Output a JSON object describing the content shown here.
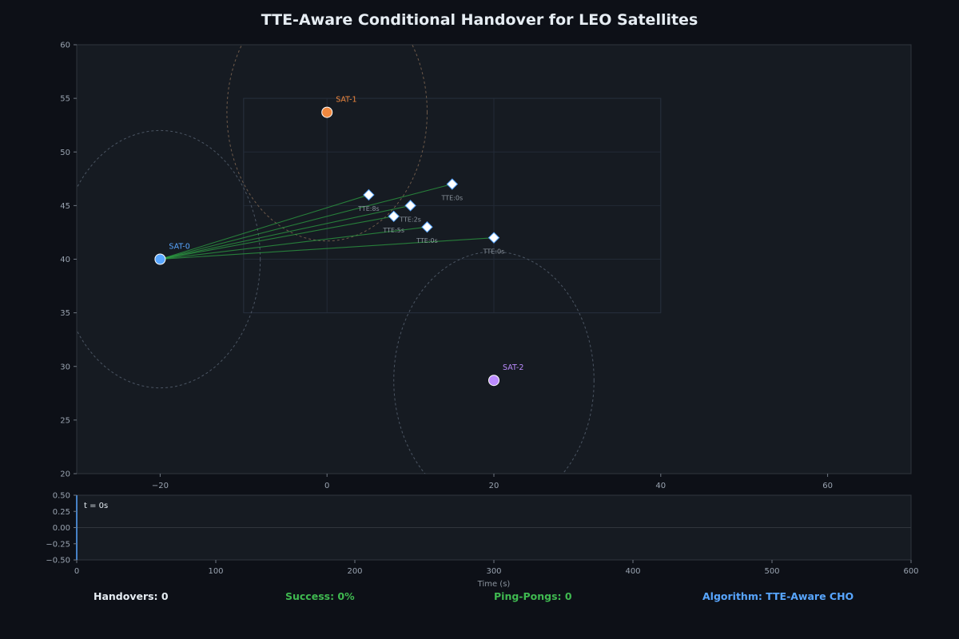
{
  "title": "TTE-Aware Conditional Handover for LEO Satellites",
  "colors": {
    "background": "#0d1017",
    "panel": "#161b22",
    "frame": "#30363d",
    "link": "#2ea043",
    "ue_fill": "#ffffff",
    "ue_edge": "#58a6ff",
    "text_white": "#e6edf3",
    "success_green": "#3fb950",
    "algorithm_blue": "#58a6ff"
  },
  "chart_data": [
    {
      "type": "scatter",
      "title": "TTE-Aware Conditional Handover for LEO Satellites",
      "xlim": [
        -30,
        70
      ],
      "ylim": [
        20,
        60
      ],
      "xticks": [
        -20,
        0,
        20,
        40,
        60
      ],
      "yticks": [
        20,
        25,
        30,
        35,
        40,
        45,
        50,
        55,
        60
      ],
      "grid": false,
      "satellites": [
        {
          "name": "SAT-0",
          "x": -20,
          "y": 40,
          "color": "#58a6ff",
          "coverage_rx": 12,
          "coverage_ry": 12
        },
        {
          "name": "SAT-1",
          "x": 0,
          "y": 53.7,
          "color": "#f0883e",
          "coverage_rx": 12,
          "coverage_ry": 12
        },
        {
          "name": "SAT-2",
          "x": 20,
          "y": 28.7,
          "color": "#bc8cff",
          "coverage_rx": 12,
          "coverage_ry": 12
        }
      ],
      "area_bounds": {
        "x": [
          -10,
          40
        ],
        "y": [
          35,
          55
        ],
        "grid_x": [
          -10,
          0,
          20,
          40
        ],
        "grid_y": [
          35,
          40,
          45,
          50,
          55
        ]
      },
      "ues": [
        {
          "x": 5,
          "y": 46,
          "label": "TTE:8s",
          "serving": "SAT-0"
        },
        {
          "x": 10,
          "y": 45,
          "label": "TTE:2s",
          "serving": "SAT-0"
        },
        {
          "x": 8,
          "y": 44,
          "label": "TTE:5s",
          "serving": "SAT-0"
        },
        {
          "x": 15,
          "y": 47,
          "label": "TTE:0s",
          "serving": "SAT-0"
        },
        {
          "x": 12,
          "y": 43,
          "label": "TTE:0s",
          "serving": "SAT-0"
        },
        {
          "x": 20,
          "y": 42,
          "label": "TTE:0s",
          "serving": "SAT-0"
        }
      ]
    },
    {
      "type": "line",
      "xlabel": "Time (s)",
      "xlim": [
        0,
        600
      ],
      "ylim": [
        -0.5,
        0.5
      ],
      "xticks": [
        0,
        100,
        200,
        300,
        400,
        500,
        600
      ],
      "yticks": [
        -0.5,
        -0.25,
        0,
        0.25,
        0.5
      ],
      "ytick_labels": [
        "−0.50",
        "−0.25",
        "0.00",
        "0.25",
        "0.50"
      ],
      "annotation": "t = 0s",
      "current_time": 0,
      "series": []
    }
  ],
  "status": {
    "handovers": "Handovers: 0",
    "success": "Success: 0%",
    "pingpongs": "Ping-Pongs: 0",
    "algorithm": "Algorithm: TTE-Aware CHO"
  }
}
